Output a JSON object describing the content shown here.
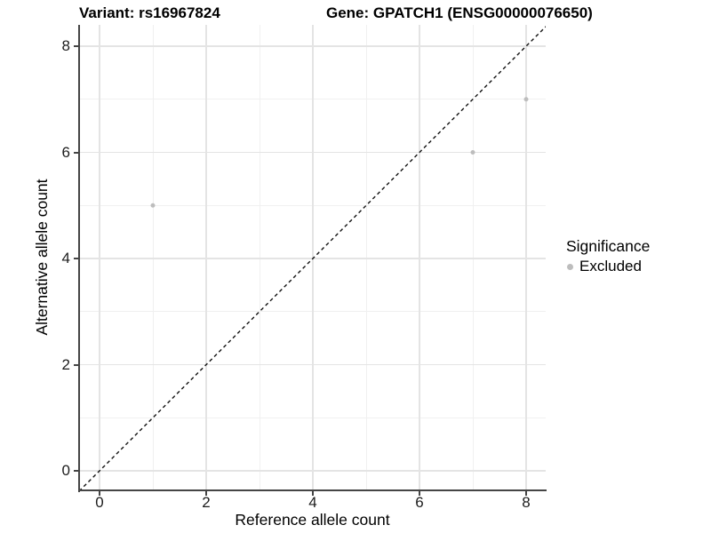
{
  "chart_data": {
    "type": "scatter",
    "titles": {
      "left": "Variant: rs16967824",
      "right": "Gene: GPATCH1 (ENSG00000076650)"
    },
    "xlabel": "Reference allele count",
    "ylabel": "Alternative allele count",
    "xlim": [
      -0.38,
      8.37
    ],
    "ylim": [
      -0.39,
      8.4
    ],
    "xticks": [
      "0",
      "2",
      "4",
      "6",
      "8"
    ],
    "yticks": [
      "0",
      "2",
      "4",
      "6",
      "8"
    ],
    "xticks_values": [
      0,
      2,
      4,
      6,
      8
    ],
    "yticks_values": [
      0,
      2,
      4,
      6,
      8
    ],
    "minor_ticks_x": [
      1,
      3,
      5,
      7
    ],
    "minor_ticks_y": [
      1,
      3,
      5,
      7
    ],
    "grid": "on",
    "series": [
      {
        "name": "Excluded",
        "color": "#bdbdbd",
        "points": [
          {
            "x": 1,
            "y": 5
          },
          {
            "x": 7,
            "y": 6
          },
          {
            "x": 8,
            "y": 7
          }
        ]
      }
    ],
    "reference_line": {
      "equation": "y = x",
      "style": "dashed",
      "color": "#111111"
    },
    "legend": {
      "title": "Significance",
      "position": "right",
      "entries": [
        {
          "label": "Excluded",
          "color": "#bdbdbd"
        }
      ]
    }
  }
}
